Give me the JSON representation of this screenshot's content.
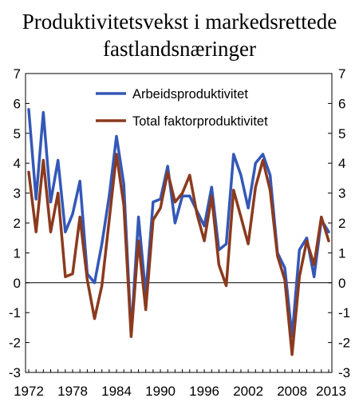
{
  "chart_data": {
    "type": "line",
    "title": "Produktivitetsvekst i markedsrettede fastlandsnæringer",
    "xlabel": "",
    "ylabel": "",
    "x": [
      1972,
      1973,
      1974,
      1975,
      1976,
      1977,
      1978,
      1979,
      1980,
      1981,
      1982,
      1983,
      1984,
      1985,
      1986,
      1987,
      1988,
      1989,
      1990,
      1991,
      1992,
      1993,
      1994,
      1995,
      1996,
      1997,
      1998,
      1999,
      2000,
      2001,
      2002,
      2003,
      2004,
      2005,
      2006,
      2007,
      2008,
      2009,
      2010,
      2011,
      2012,
      2013
    ],
    "xticks": [
      "1972",
      "1978",
      "1984",
      "1990",
      "1996",
      "2002",
      "2008",
      "2013"
    ],
    "ylim": [
      -3,
      7
    ],
    "yticks": [
      -3,
      -2,
      -1,
      0,
      1,
      2,
      3,
      4,
      5,
      6,
      7
    ],
    "grid": false,
    "legend_position": "top",
    "series": [
      {
        "name": "Arbeidsproduktivitet",
        "color": "#3458b8",
        "values": [
          5.8,
          2.8,
          5.7,
          2.7,
          4.1,
          1.7,
          2.3,
          3.4,
          0.3,
          0.0,
          1.3,
          2.9,
          4.9,
          3.3,
          -1.7,
          2.2,
          -0.4,
          2.7,
          2.8,
          3.9,
          2.0,
          2.9,
          2.9,
          2.4,
          1.9,
          3.2,
          1.1,
          1.3,
          4.3,
          3.6,
          2.5,
          4.0,
          4.3,
          3.6,
          1.0,
          0.5,
          -1.8,
          1.1,
          1.5,
          0.2,
          2.1,
          1.7
        ]
      },
      {
        "name": "Total faktorproduktivitet",
        "color": "#8b3a1e",
        "values": [
          3.7,
          1.7,
          4.1,
          1.7,
          3.0,
          0.2,
          0.3,
          2.2,
          0.1,
          -1.2,
          -0.1,
          2.1,
          4.3,
          2.6,
          -1.8,
          1.4,
          -0.9,
          2.1,
          2.5,
          3.7,
          2.7,
          3.0,
          3.6,
          2.3,
          1.4,
          2.9,
          0.6,
          -0.1,
          3.1,
          2.2,
          1.3,
          3.2,
          4.1,
          3.1,
          0.9,
          0.1,
          -2.4,
          0.2,
          1.4,
          0.6,
          2.2,
          1.4
        ]
      }
    ]
  }
}
